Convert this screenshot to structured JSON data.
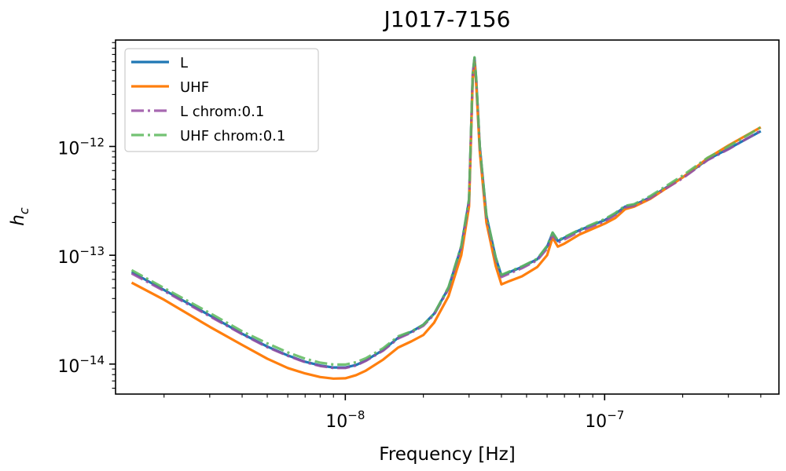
{
  "chart_data": {
    "type": "line",
    "title": "J1017-7156",
    "xlabel": "Frequency [Hz]",
    "ylabel_base": "h",
    "ylabel_sub": "c",
    "xscale": "log",
    "yscale": "log",
    "xlim": [
      1.3e-09,
      4.7e-07
    ],
    "ylim": [
      5.3e-15,
      9.5e-12
    ],
    "xticks": [
      {
        "value": 1e-08,
        "base": "10",
        "exp": "−8"
      },
      {
        "value": 1e-07,
        "base": "10",
        "exp": "−7"
      }
    ],
    "yticks": [
      {
        "value": 1e-14,
        "base": "10",
        "exp": "−14"
      },
      {
        "value": 1e-13,
        "base": "10",
        "exp": "−13"
      },
      {
        "value": 1e-12,
        "base": "10",
        "exp": "−12"
      }
    ],
    "legend_position": "top-left",
    "series": [
      {
        "name": "L",
        "color": "#1f77b4",
        "dash": "solid",
        "x": [
          1.5e-09,
          2e-09,
          3e-09,
          4e-09,
          5e-09,
          6e-09,
          7e-09,
          8e-09,
          9e-09,
          1e-08,
          1.1e-08,
          1.2e-08,
          1.4e-08,
          1.6e-08,
          1.8e-08,
          2e-08,
          2.2e-08,
          2.5e-08,
          2.8e-08,
          3e-08,
          3.1e-08,
          3.15e-08,
          3.2e-08,
          3.3e-08,
          3.5e-08,
          3.8e-08,
          4e-08,
          4.3e-08,
          4.8e-08,
          5.5e-08,
          6e-08,
          6.3e-08,
          6.6e-08,
          7e-08,
          8e-08,
          1e-07,
          1.1e-07,
          1.2e-07,
          1.3e-07,
          1.5e-07,
          2e-07,
          2.5e-07,
          3e-07,
          4e-07
        ],
        "values": [
          7e-14,
          4.8e-14,
          2.8e-14,
          1.9e-14,
          1.45e-14,
          1.2e-14,
          1.05e-14,
          9.7e-15,
          9.3e-15,
          9.3e-15,
          9.8e-15,
          1.08e-14,
          1.35e-14,
          1.75e-14,
          1.98e-14,
          2.3e-14,
          2.9e-14,
          5e-14,
          1.2e-13,
          3.2e-13,
          4.6e-12,
          6.5e-12,
          4e-12,
          1e-12,
          2.3e-13,
          9.5e-14,
          6.5e-14,
          7e-14,
          7.8e-14,
          9.2e-14,
          1.2e-13,
          1.6e-13,
          1.35e-13,
          1.45e-13,
          1.7e-13,
          2.1e-13,
          2.4e-13,
          2.8e-13,
          2.9e-13,
          3.4e-13,
          5.2e-13,
          7.6e-13,
          9.5e-13,
          1.38e-12
        ]
      },
      {
        "name": "UHF",
        "color": "#ff7f0e",
        "dash": "solid",
        "x": [
          1.5e-09,
          2e-09,
          3e-09,
          4e-09,
          5e-09,
          6e-09,
          7e-09,
          8e-09,
          9e-09,
          1e-08,
          1.1e-08,
          1.2e-08,
          1.4e-08,
          1.6e-08,
          1.8e-08,
          2e-08,
          2.2e-08,
          2.5e-08,
          2.8e-08,
          3e-08,
          3.1e-08,
          3.15e-08,
          3.2e-08,
          3.3e-08,
          3.5e-08,
          3.8e-08,
          4e-08,
          4.3e-08,
          4.8e-08,
          5.5e-08,
          6e-08,
          6.3e-08,
          6.6e-08,
          7e-08,
          8e-08,
          1e-07,
          1.1e-07,
          1.2e-07,
          1.3e-07,
          1.5e-07,
          2e-07,
          2.5e-07,
          3e-07,
          4e-07
        ],
        "values": [
          5.6e-14,
          3.9e-14,
          2.2e-14,
          1.5e-14,
          1.12e-14,
          9.2e-15,
          8.2e-15,
          7.6e-15,
          7.35e-15,
          7.4e-15,
          7.9e-15,
          8.7e-15,
          1.1e-14,
          1.42e-14,
          1.62e-14,
          1.85e-14,
          2.4e-14,
          4.2e-14,
          1e-13,
          2.8e-13,
          4.2e-12,
          6e-12,
          3.6e-12,
          9e-13,
          2e-13,
          8e-14,
          5.4e-14,
          5.8e-14,
          6.4e-14,
          7.8e-14,
          1e-13,
          1.45e-13,
          1.2e-13,
          1.28e-13,
          1.55e-13,
          1.95e-13,
          2.2e-13,
          2.65e-13,
          2.8e-13,
          3.3e-13,
          5.2e-13,
          7.8e-13,
          1.02e-12,
          1.5e-12
        ]
      },
      {
        "name": "L chrom:0.1",
        "color": "#984ea3",
        "dash": "dashdot",
        "x": [
          1.5e-09,
          2e-09,
          3e-09,
          4e-09,
          5e-09,
          6e-09,
          7e-09,
          8e-09,
          9e-09,
          1e-08,
          1.1e-08,
          1.2e-08,
          1.4e-08,
          1.6e-08,
          1.8e-08,
          2e-08,
          2.2e-08,
          2.5e-08,
          2.8e-08,
          3e-08,
          3.1e-08,
          3.15e-08,
          3.2e-08,
          3.3e-08,
          3.5e-08,
          3.8e-08,
          4e-08,
          4.3e-08,
          4.8e-08,
          5.5e-08,
          6e-08,
          6.3e-08,
          6.6e-08,
          7e-08,
          8e-08,
          1e-07,
          1.1e-07,
          1.2e-07,
          1.3e-07,
          1.5e-07,
          2e-07,
          2.5e-07,
          3e-07,
          4e-07
        ],
        "values": [
          6.8e-14,
          4.7e-14,
          2.75e-14,
          1.88e-14,
          1.43e-14,
          1.19e-14,
          1.04e-14,
          9.6e-15,
          9.2e-15,
          9.2e-15,
          9.7e-15,
          1.07e-14,
          1.33e-14,
          1.72e-14,
          1.95e-14,
          2.25e-14,
          2.85e-14,
          4.9e-14,
          1.18e-13,
          3.1e-13,
          4.5e-12,
          6.4e-12,
          3.9e-12,
          9.8e-13,
          2.2e-13,
          9.2e-14,
          6.3e-14,
          6.8e-14,
          7.6e-14,
          9e-14,
          1.15e-13,
          1.55e-13,
          1.3e-13,
          1.4e-13,
          1.65e-13,
          2.05e-13,
          2.35e-13,
          2.75e-13,
          2.85e-13,
          3.35e-13,
          5.1e-13,
          7.5e-13,
          9.4e-13,
          1.4e-12
        ]
      },
      {
        "name": "UHF chrom:0.1",
        "color": "#5cb85c",
        "dash": "dashdot",
        "x": [
          1.5e-09,
          2e-09,
          3e-09,
          4e-09,
          5e-09,
          6e-09,
          7e-09,
          8e-09,
          9e-09,
          1e-08,
          1.1e-08,
          1.2e-08,
          1.4e-08,
          1.6e-08,
          1.8e-08,
          2e-08,
          2.2e-08,
          2.5e-08,
          2.8e-08,
          3e-08,
          3.1e-08,
          3.15e-08,
          3.2e-08,
          3.3e-08,
          3.5e-08,
          3.8e-08,
          4e-08,
          4.3e-08,
          4.8e-08,
          5.5e-08,
          6e-08,
          6.3e-08,
          6.6e-08,
          7e-08,
          8e-08,
          1e-07,
          1.1e-07,
          1.2e-07,
          1.3e-07,
          1.5e-07,
          2e-07,
          2.5e-07,
          3e-07,
          4e-07
        ],
        "values": [
          7.3e-14,
          5e-14,
          2.95e-14,
          2e-14,
          1.55e-14,
          1.28e-14,
          1.12e-14,
          1.03e-14,
          9.9e-15,
          9.9e-15,
          1.04e-14,
          1.13e-14,
          1.4e-14,
          1.8e-14,
          2e-14,
          2.3e-14,
          2.9e-14,
          5.1e-14,
          1.22e-13,
          3.3e-13,
          4.7e-12,
          6.6e-12,
          4.1e-12,
          1e-12,
          2.35e-13,
          9.6e-14,
          6.6e-14,
          7.1e-14,
          7.9e-14,
          9.3e-14,
          1.22e-13,
          1.62e-13,
          1.37e-13,
          1.47e-13,
          1.72e-13,
          2.15e-13,
          2.45e-13,
          2.85e-13,
          2.95e-13,
          3.5e-13,
          5.4e-13,
          7.9e-13,
          1e-12,
          1.5e-12
        ]
      }
    ]
  }
}
